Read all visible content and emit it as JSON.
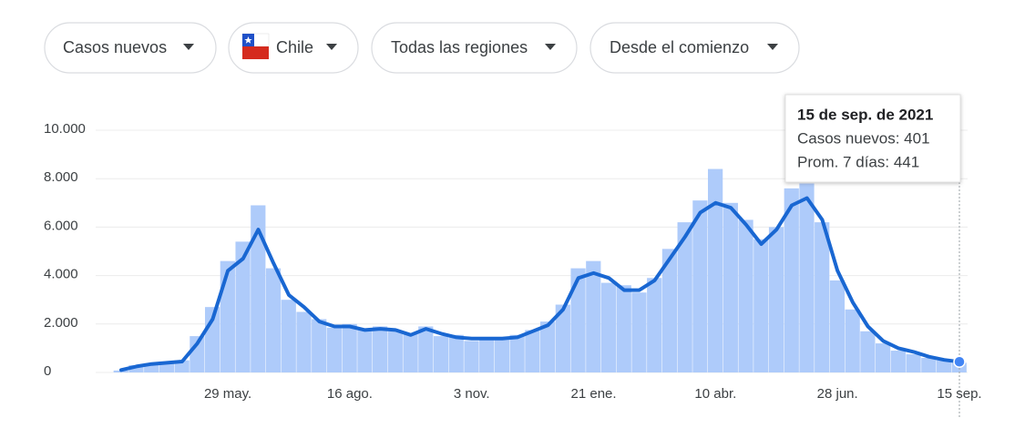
{
  "controls": [
    "Casos nuevos",
    "Chile",
    "Todas las regiones",
    "Desde el comienzo"
  ],
  "tooltip": {
    "title": "15 de sep. de 2021",
    "rows": [
      "Casos nuevos: 401",
      "Prom. 7 días: 441"
    ]
  },
  "chart_data": {
    "type": "bar-line",
    "categories": [
      null,
      null,
      null,
      null,
      null,
      null,
      null,
      "29 may.",
      null,
      null,
      null,
      null,
      null,
      null,
      null,
      "16 ago.",
      null,
      null,
      null,
      null,
      null,
      null,
      null,
      "3 nov.",
      null,
      null,
      null,
      null,
      null,
      null,
      null,
      "21 ene.",
      null,
      null,
      null,
      null,
      null,
      null,
      null,
      "10 abr.",
      null,
      null,
      null,
      null,
      null,
      null,
      null,
      "28 jun.",
      null,
      null,
      null,
      null,
      null,
      null,
      null,
      "15 sep."
    ],
    "series": [
      {
        "name": "Casos nuevos",
        "kind": "bar",
        "color": "#aecbfa",
        "values": [
          80,
          300,
          380,
          420,
          500,
          1500,
          2700,
          4600,
          5400,
          6900,
          4300,
          3000,
          2500,
          2200,
          1850,
          2000,
          1800,
          1900,
          1700,
          1600,
          1900,
          1500,
          1550,
          1300,
          1450,
          1350,
          1550,
          1750,
          2100,
          2800,
          4300,
          4600,
          3700,
          3600,
          3300,
          3900,
          5100,
          6200,
          7100,
          8400,
          7000,
          6300,
          5500,
          6000,
          7600,
          7800,
          6200,
          3800,
          2600,
          1700,
          1200,
          900,
          750,
          600,
          500,
          401
        ]
      },
      {
        "name": "Prom. 7 días",
        "kind": "line",
        "color": "#1967d2",
        "values": [
          100,
          250,
          350,
          400,
          450,
          1200,
          2200,
          4200,
          4700,
          5900,
          4500,
          3200,
          2700,
          2100,
          1900,
          1900,
          1750,
          1800,
          1750,
          1550,
          1800,
          1600,
          1450,
          1400,
          1400,
          1400,
          1450,
          1700,
          1950,
          2600,
          3900,
          4100,
          3900,
          3400,
          3400,
          3800,
          4700,
          5600,
          6600,
          7000,
          6800,
          6100,
          5300,
          5900,
          6900,
          7200,
          6300,
          4200,
          2900,
          1900,
          1300,
          1000,
          850,
          650,
          520,
          441
        ]
      }
    ],
    "ylim": [
      0,
      10000
    ],
    "yticks": [
      0,
      {
        "value": 2000,
        "label": "2.000"
      },
      {
        "value": 4000,
        "label": "4.000"
      },
      {
        "value": 6000,
        "label": "6.000"
      },
      {
        "value": 8000,
        "label": "8.000"
      },
      {
        "value": 10000,
        "label": "10.000"
      }
    ],
    "grid": true
  }
}
